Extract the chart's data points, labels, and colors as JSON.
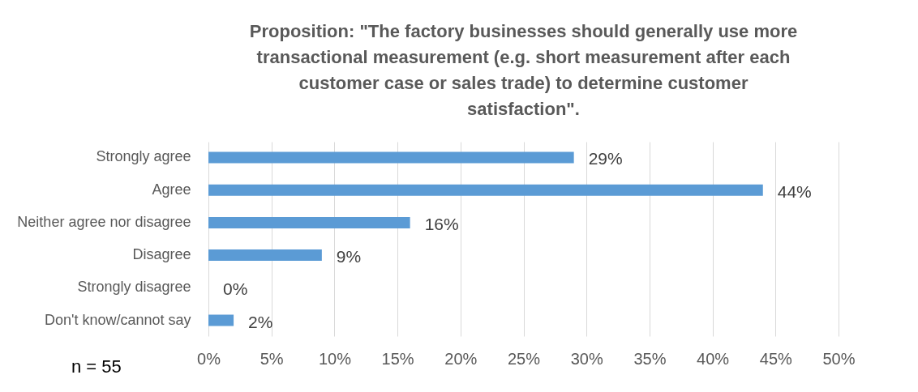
{
  "chart_data": {
    "type": "bar",
    "orientation": "horizontal",
    "title": "Proposition: \"The factory businesses should generally use more transactional measurement (e.g. short measurement after each customer case or sales trade) to determine customer satisfaction\".",
    "categories": [
      "Strongly agree",
      "Agree",
      "Neither agree nor disagree",
      "Disagree",
      "Strongly disagree",
      "Don't know/cannot say"
    ],
    "values": [
      29,
      44,
      16,
      9,
      0,
      2
    ],
    "value_labels": [
      "29%",
      "44%",
      "16%",
      "9%",
      "0%",
      "2%"
    ],
    "color": "#5b9bd5",
    "xlim": [
      0,
      50
    ],
    "xticks": [
      {
        "value": 0,
        "label": "0%"
      },
      {
        "value": 5,
        "label": "5%"
      },
      {
        "value": 10,
        "label": "10%"
      },
      {
        "value": 15,
        "label": "15%"
      },
      {
        "value": 20,
        "label": "20%"
      },
      {
        "value": 25,
        "label": "25%"
      },
      {
        "value": 30,
        "label": "30%"
      },
      {
        "value": 35,
        "label": "35%"
      },
      {
        "value": 40,
        "label": "40%"
      },
      {
        "value": 45,
        "label": "45%"
      },
      {
        "value": 50,
        "label": "50%"
      }
    ],
    "grid": "x",
    "annotations": [
      "n = 55"
    ]
  }
}
